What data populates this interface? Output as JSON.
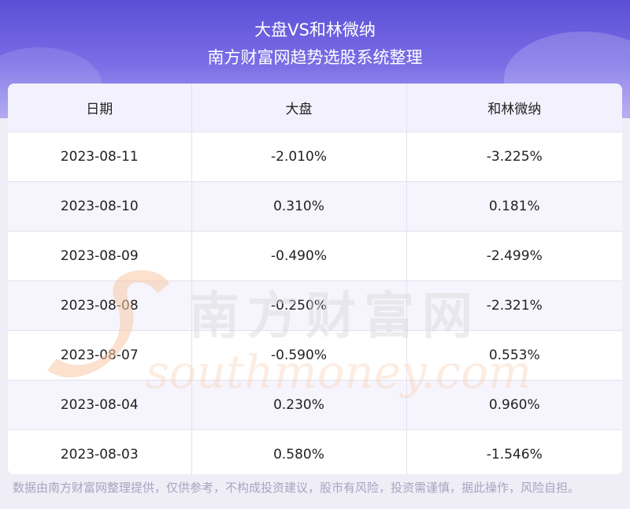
{
  "header": {
    "title": "大盘VS和林微纳",
    "subtitle": "南方财富网趋势选股系统整理"
  },
  "table": {
    "columns": [
      "日期",
      "大盘",
      "和林微纳"
    ],
    "rows": [
      [
        "2023-08-11",
        "-2.010%",
        "-3.225%"
      ],
      [
        "2023-08-10",
        "0.310%",
        "0.181%"
      ],
      [
        "2023-08-09",
        "-0.490%",
        "-2.499%"
      ],
      [
        "2023-08-08",
        "-0.250%",
        "-2.321%"
      ],
      [
        "2023-08-07",
        "-0.590%",
        "0.553%"
      ],
      [
        "2023-08-04",
        "0.230%",
        "0.960%"
      ],
      [
        "2023-08-03",
        "0.580%",
        "-1.546%"
      ]
    ]
  },
  "watermark": {
    "cn": "南方财富网",
    "en": "southmoney.com"
  },
  "footer": {
    "disclaimer": "数据由南方财富网整理提供，仅供参考，不构成投资建议，股市有风险，投资需谨慎，据此操作，风险自担。"
  }
}
